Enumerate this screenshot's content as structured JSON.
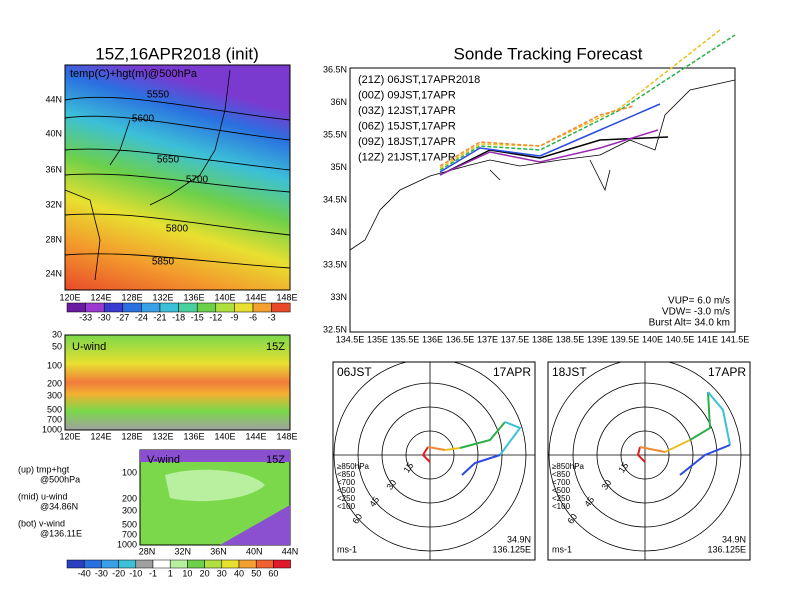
{
  "left_map": {
    "title": "15Z,16APR2018 (init)",
    "label": "temp(C)+hgt(m)@500hPa",
    "lat_labels": [
      "44N",
      "40N",
      "36N",
      "32N",
      "28N",
      "24N"
    ],
    "lon_labels": [
      "120E",
      "124E",
      "128E",
      "132E",
      "136E",
      "140E",
      "144E",
      "148E"
    ],
    "contour_labels": [
      "5550",
      "5600",
      "5650",
      "5700",
      "5800",
      "5850"
    ],
    "colorbar_labels": [
      "-33",
      "-30",
      "-27",
      "-24",
      "-21",
      "-18",
      "-15",
      "-12",
      "-9",
      "-6",
      "-3"
    ]
  },
  "u_wind": {
    "label": "U-wind",
    "time": "15Z",
    "y_labels": [
      "30",
      "50",
      "100",
      "200",
      "300",
      "500",
      "700",
      "1000"
    ],
    "x_labels": [
      "120E",
      "124E",
      "128E",
      "132E",
      "136E",
      "140E",
      "144E",
      "148E"
    ]
  },
  "v_wind": {
    "label": "V-wind",
    "time": "15Z",
    "y_labels": [
      "100",
      "200",
      "300",
      "500",
      "700",
      "1000"
    ],
    "x_labels": [
      "28N",
      "32N",
      "36N",
      "40N",
      "44N"
    ]
  },
  "notes": [
    "(up) tmp+hgt",
    "@500hPa",
    "(mid) u-wind",
    "@34.86N",
    "(bot) v-wind",
    "@136.11E"
  ],
  "wind_colorbar_labels": [
    "-40",
    "-30",
    "-20",
    "-10",
    "-1",
    "1",
    "10",
    "20",
    "30",
    "40",
    "50",
    "60"
  ],
  "track_map": {
    "title": "Sonde Tracking Forecast",
    "lat_labels": [
      "36.5N",
      "36N",
      "35.5N",
      "35N",
      "34.5N",
      "34N",
      "33.5N",
      "33N",
      "32.5N"
    ],
    "lon_labels": [
      "134.5E",
      "135E",
      "135.5E",
      "136E",
      "136.5E",
      "137E",
      "137.5E",
      "138E",
      "138.5E",
      "139E",
      "139.5E",
      "140E",
      "140.5E",
      "141E",
      "141.5E"
    ],
    "legend": [
      "(21Z) 06JST,17APR2018",
      "(00Z) 09JST,17APR",
      "(03Z) 12JST,17APR",
      "(06Z) 15JST,17APR",
      "(09Z) 18JST,17APR",
      "(12Z) 21JST,17APR"
    ],
    "params": [
      "VUP= 6.0 m/s",
      "VDW= -3.0 m/s",
      "Burst Alt= 34.0 km"
    ]
  },
  "hodographs": [
    {
      "time": "06JST",
      "date": "17APR",
      "lat": "34.9N",
      "lon": "136.125E",
      "unit": "ms-1",
      "rings": [
        "15",
        "30",
        "45",
        "60"
      ],
      "legend": [
        "≥850hPa",
        "<850",
        "<700",
        "<500",
        "<250",
        "<100"
      ]
    },
    {
      "time": "18JST",
      "date": "17APR",
      "lat": "34.9N",
      "lon": "136.125E",
      "unit": "ms-1",
      "rings": [
        "15",
        "30",
        "45",
        "60"
      ],
      "legend": [
        "≥850hPa",
        "<850",
        "<700",
        "<500",
        "<250",
        "<100"
      ]
    }
  ]
}
